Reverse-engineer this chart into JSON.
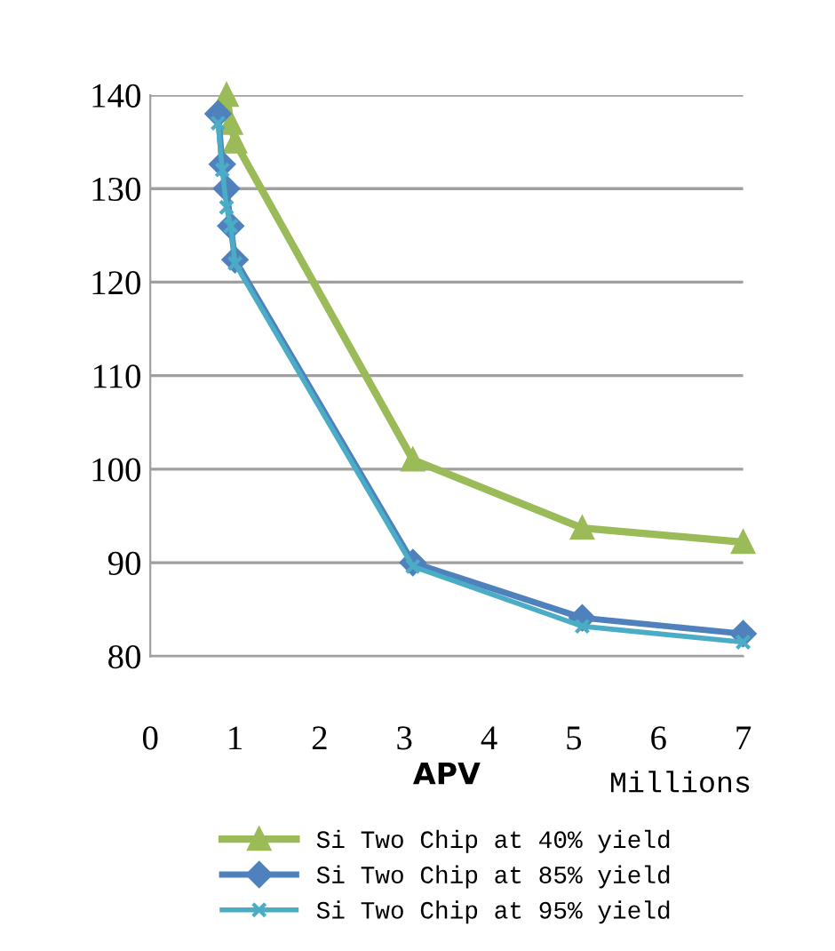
{
  "chart_data": {
    "type": "line",
    "xlabel": "APV",
    "annotations": [
      "Millions"
    ],
    "xlim": [
      0,
      7
    ],
    "xticks": [
      0,
      1,
      2,
      3,
      4,
      5,
      6,
      7
    ],
    "ylim": [
      80,
      140
    ],
    "yticks": [
      80,
      90,
      100,
      110,
      120,
      130,
      140
    ],
    "grid": "y",
    "legend": "bottom",
    "line_style": "solid",
    "series": [
      {
        "name": "Si Two Chip at 40% yield",
        "color": "#9bbb59",
        "marker": "triangle",
        "x": [
          0.9,
          0.95,
          1.0,
          3.1,
          5.1,
          7.0
        ],
        "values": [
          140,
          137,
          135,
          101,
          93.7,
          92.2
        ]
      },
      {
        "name": "Si Two Chip at 85% yield",
        "color": "#4f81bd",
        "marker": "diamond",
        "x": [
          0.8,
          0.85,
          0.9,
          0.95,
          1.0,
          3.1,
          5.1,
          7.0
        ],
        "values": [
          138,
          132.6,
          130,
          126,
          122.4,
          90,
          84.1,
          82.4
        ]
      },
      {
        "name": "Si Two Chip at 95% yield",
        "color": "#4bacc6",
        "marker": "cross",
        "x": [
          0.8,
          0.85,
          0.9,
          0.95,
          1.0,
          3.1,
          5.1,
          7.0
        ],
        "values": [
          137,
          132,
          128,
          126,
          122,
          89.6,
          83.2,
          81.5
        ]
      }
    ]
  }
}
